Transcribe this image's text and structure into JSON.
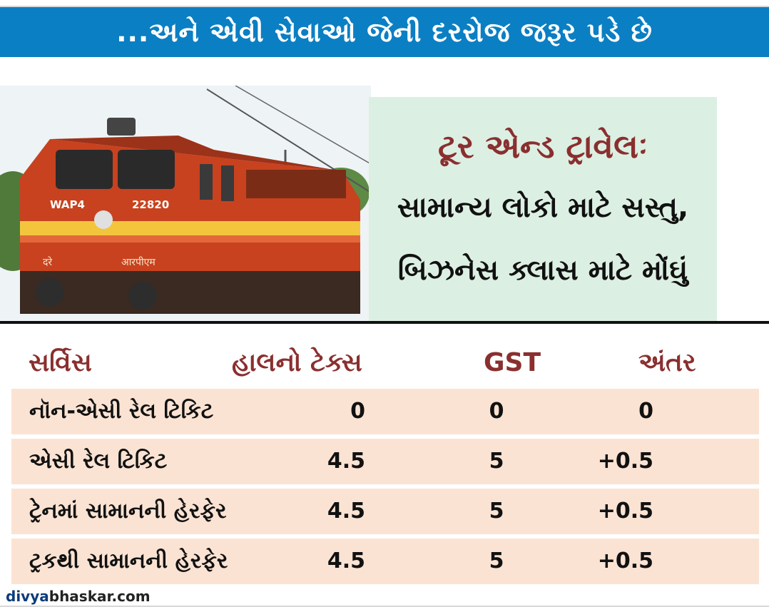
{
  "banner": {
    "title": "...અને એવી સેવાઓ જેની દરરોજ જરૂર પડે છે"
  },
  "photo": {
    "loco_code": "WAP4",
    "loco_number": "22820",
    "side_text_left": "दरे",
    "side_text_right": "आरपीएम"
  },
  "titlebox": {
    "line1": "ટૂર એન્ડ ટ્રાવેલઃ",
    "line2": "સામાન્ય લોકો માટે સસ્તુ,",
    "line3": "બિઝનેસ ક્લાસ માટે મોંઘું"
  },
  "table": {
    "headers": [
      "સર્વિસ",
      "હાલનો ટેક્સ",
      "GST",
      "અંતર"
    ],
    "rows": [
      {
        "service": "નૉન-એસી રેલ ટિકિટ",
        "current": "0",
        "gst": "0",
        "diff": "0"
      },
      {
        "service": "એસી રેલ ટિકિટ",
        "current": "4.5",
        "gst": "5",
        "diff": "+0.5"
      },
      {
        "service": "ટ્રેનમાં સામાનની હેરફેર",
        "current": "4.5",
        "gst": "5",
        "diff": "+0.5"
      },
      {
        "service": "ટ્રકથી સામાનની હેરફેર",
        "current": "4.5",
        "gst": "5",
        "diff": "+0.5"
      }
    ]
  },
  "footer": {
    "logo_part1": "divya",
    "logo_part2": "bhaskar.com"
  },
  "colors": {
    "banner": "#0b7fc3",
    "title_accent": "#8a2f2f",
    "titlebox_bg": "#dcefe3",
    "row_bg": "#fbe3d3"
  }
}
